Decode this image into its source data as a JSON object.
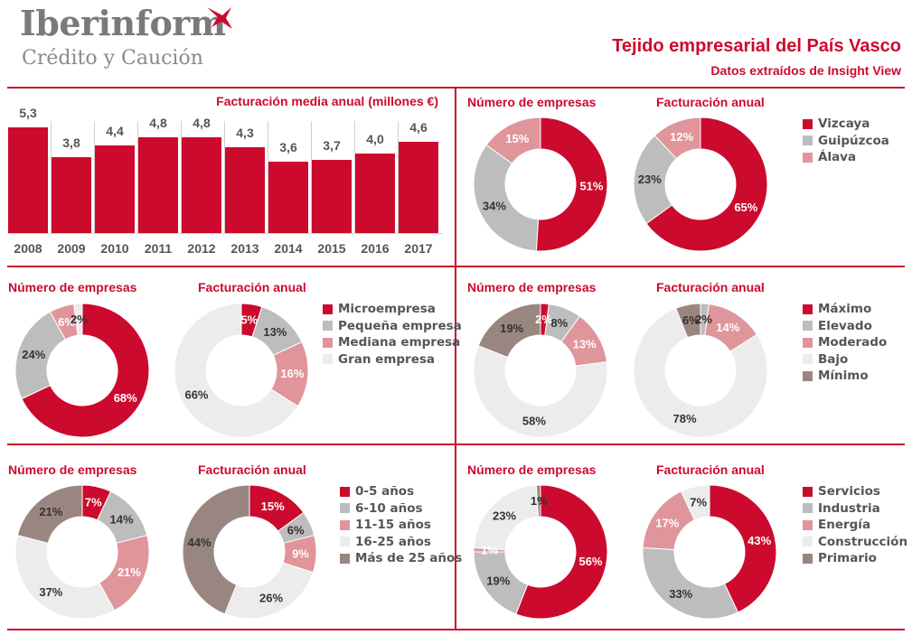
{
  "header": {
    "brand_main": "Iberinform",
    "brand_sub": "Crédito y Caución",
    "title": "Tejido empresarial del País Vasco",
    "subtitle": "Datos extraídos de Insight View"
  },
  "colors": {
    "accent": "#cc0a2d",
    "grey": "#bdbdbd",
    "pink": "#e0959b",
    "light": "#ececec",
    "brown": "#9a8680"
  },
  "chart_data": [
    {
      "type": "bar",
      "title": "Facturación media anual (millones €)",
      "categories": [
        "2008",
        "2009",
        "2010",
        "2011",
        "2012",
        "2013",
        "2014",
        "2015",
        "2016",
        "2017"
      ],
      "values": [
        5.3,
        3.8,
        4.4,
        4.8,
        4.8,
        4.3,
        3.6,
        3.7,
        4.0,
        4.6
      ],
      "labels": [
        "5,3",
        "3,8",
        "4,4",
        "4,8",
        "4,8",
        "4,3",
        "3,6",
        "3,7",
        "4,0",
        "4,6"
      ],
      "ylim": [
        0,
        6
      ],
      "color": "#cc0a2d"
    },
    {
      "type": "pie",
      "group": "provincia",
      "legend": [
        {
          "label": "Vizcaya",
          "color": "#cc0a2d"
        },
        {
          "label": "Guipúzcoa",
          "color": "#bdbdbd"
        },
        {
          "label": "Álava",
          "color": "#e0959b"
        }
      ],
      "charts": [
        {
          "title": "Número de empresas",
          "values": [
            51,
            34,
            15
          ],
          "labels": [
            "51%",
            "34%",
            "15%"
          ]
        },
        {
          "title": "Facturación anual",
          "values": [
            65,
            23,
            12
          ],
          "labels": [
            "65%",
            "23%",
            "12%"
          ]
        }
      ]
    },
    {
      "type": "pie",
      "group": "tamaño",
      "legend": [
        {
          "label": "Microempresa",
          "color": "#cc0a2d"
        },
        {
          "label": "Pequeña empresa",
          "color": "#bdbdbd"
        },
        {
          "label": "Mediana empresa",
          "color": "#e0959b"
        },
        {
          "label": "Gran empresa",
          "color": "#ececec"
        }
      ],
      "charts": [
        {
          "title": "Número de empresas",
          "values": [
            68,
            24,
            6,
            2
          ],
          "labels": [
            "68%",
            "24%",
            "6%",
            "2%"
          ]
        },
        {
          "title": "Facturación anual",
          "values": [
            5,
            13,
            16,
            66
          ],
          "labels": [
            "5%",
            "13%",
            "16%",
            "66%"
          ]
        }
      ]
    },
    {
      "type": "pie",
      "group": "riesgo",
      "legend": [
        {
          "label": "Máximo",
          "color": "#cc0a2d"
        },
        {
          "label": "Elevado",
          "color": "#bdbdbd"
        },
        {
          "label": "Moderado",
          "color": "#e0959b"
        },
        {
          "label": "Bajo",
          "color": "#ececec"
        },
        {
          "label": "Mínimo",
          "color": "#9a8680"
        }
      ],
      "charts": [
        {
          "title": "Número de empresas",
          "values": [
            2,
            8,
            13,
            58,
            19
          ],
          "labels": [
            "2%",
            "8%",
            "13%",
            "58%",
            "19%"
          ]
        },
        {
          "title": "Facturación anual",
          "values": [
            0,
            2,
            14,
            78,
            6
          ],
          "labels": [
            "",
            "2%",
            "14%",
            "78%",
            "6%"
          ]
        }
      ]
    },
    {
      "type": "pie",
      "group": "antigüedad",
      "legend": [
        {
          "label": "0-5 años",
          "color": "#cc0a2d"
        },
        {
          "label": "6-10 años",
          "color": "#bdbdbd"
        },
        {
          "label": "11-15 años",
          "color": "#e0959b"
        },
        {
          "label": "16-25 años",
          "color": "#ececec"
        },
        {
          "label": "Más de 25 años",
          "color": "#9a8680"
        }
      ],
      "charts": [
        {
          "title": "Número de empresas",
          "values": [
            7,
            14,
            21,
            37,
            21
          ],
          "labels": [
            "7%",
            "14%",
            "21%",
            "37%",
            "21%"
          ]
        },
        {
          "title": "Facturación anual",
          "values": [
            15,
            6,
            9,
            26,
            44
          ],
          "labels": [
            "15%",
            "6%",
            "9%",
            "26%",
            "44%"
          ]
        }
      ]
    },
    {
      "type": "pie",
      "group": "sector",
      "legend": [
        {
          "label": "Servicios",
          "color": "#cc0a2d"
        },
        {
          "label": "Industria",
          "color": "#bdbdbd"
        },
        {
          "label": "Energía",
          "color": "#e0959b"
        },
        {
          "label": "Construcción",
          "color": "#ececec"
        },
        {
          "label": "Primario",
          "color": "#9a8680"
        }
      ],
      "charts": [
        {
          "title": "Número de empresas",
          "values": [
            56,
            19,
            1,
            23,
            1
          ],
          "labels": [
            "56%",
            "19%",
            "1%",
            "23%",
            "1%"
          ]
        },
        {
          "title": "Facturación anual",
          "values": [
            43,
            33,
            17,
            7,
            0
          ],
          "labels": [
            "43%",
            "33%",
            "17%",
            "7%",
            ""
          ]
        }
      ]
    }
  ]
}
